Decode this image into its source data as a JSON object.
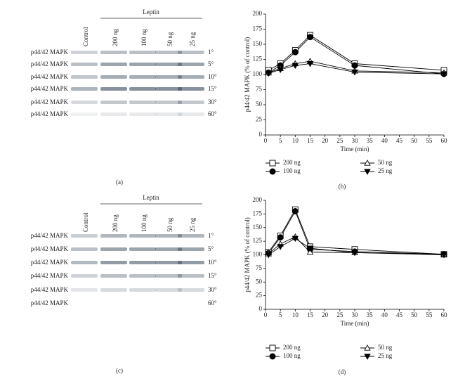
{
  "blots": [
    {
      "header": "Leptin",
      "lanes": [
        "Control",
        "200 ng",
        "100 ng",
        "50 ng",
        "25 ng"
      ],
      "rows": [
        {
          "label": "p44/42 MAPK",
          "time": "1°"
        },
        {
          "label": "p44/42 MAPK",
          "time": "5°"
        },
        {
          "label": "p44/42 MAPK",
          "time": "10°"
        },
        {
          "label": "p44/42 MAPK",
          "time": "15°"
        },
        {
          "label": "p44/42 MAPK",
          "time": "30°"
        },
        {
          "label": "p44/42 MAPK",
          "time": "60°"
        }
      ],
      "caption": "(a)"
    },
    {
      "header": "Leptin",
      "lanes": [
        "Control",
        "200 ng",
        "100 ng",
        "50 ng",
        "25 ng"
      ],
      "rows": [
        {
          "label": "p44/42 MAPK",
          "time": "1°"
        },
        {
          "label": "p44/42 MAPK",
          "time": "5°"
        },
        {
          "label": "p44/42 MAPK",
          "time": "10°"
        },
        {
          "label": "p44/42 MAPK",
          "time": "15°"
        },
        {
          "label": "p44/42 MAPK",
          "time": "30°"
        },
        {
          "label": "p44/42 MAPK",
          "time": "60°"
        }
      ],
      "caption": "(c)"
    }
  ],
  "chart_data": [
    {
      "type": "line",
      "caption": "(b)",
      "x_label": "Time (min)",
      "y_label": "p44/42 MAPK (% of control)",
      "x": [
        1,
        5,
        10,
        15,
        30,
        60
      ],
      "xlim": [
        0,
        60
      ],
      "xticks": [
        0,
        5,
        10,
        15,
        20,
        25,
        30,
        35,
        40,
        45,
        50,
        55,
        60
      ],
      "ylim": [
        0,
        200
      ],
      "yticks": [
        0,
        25,
        50,
        75,
        100,
        125,
        150,
        175,
        200
      ],
      "series": [
        {
          "name": "200 ng",
          "color": "#000000",
          "marker": "square",
          "marker_fill": "#ffffff",
          "values": [
            107,
            118,
            140,
            165,
            118,
            107
          ]
        },
        {
          "name": "100 ng",
          "color": "#000000",
          "marker": "circle",
          "marker_fill": "#000000",
          "values": [
            103,
            115,
            137,
            162,
            115,
            101
          ]
        },
        {
          "name": "50 ng",
          "color": "#000000",
          "marker": "triangle",
          "marker_fill": "#ffffff",
          "values": [
            103,
            110,
            118,
            122,
            106,
            103
          ]
        },
        {
          "name": "25 ng",
          "color": "#000000",
          "marker": "triangle-down",
          "marker_fill": "#000000",
          "values": [
            102,
            108,
            115,
            118,
            104,
            101
          ]
        }
      ]
    },
    {
      "type": "line",
      "caption": "(d)",
      "x_label": "Time (min)",
      "y_label": "p44/42 MAPK (% of control)",
      "x": [
        1,
        5,
        10,
        15,
        30,
        60
      ],
      "xlim": [
        0,
        60
      ],
      "xticks": [
        0,
        5,
        10,
        15,
        20,
        25,
        30,
        35,
        40,
        45,
        50,
        55,
        60
      ],
      "ylim": [
        0,
        200
      ],
      "yticks": [
        0,
        25,
        50,
        75,
        100,
        125,
        150,
        175,
        200
      ],
      "series": [
        {
          "name": "200 ng",
          "color": "#000000",
          "marker": "square",
          "marker_fill": "#ffffff",
          "values": [
            105,
            135,
            183,
            115,
            110,
            101
          ]
        },
        {
          "name": "100 ng",
          "color": "#000000",
          "marker": "circle",
          "marker_fill": "#000000",
          "values": [
            103,
            132,
            180,
            110,
            106,
            101
          ]
        },
        {
          "name": "50 ng",
          "color": "#000000",
          "marker": "triangle",
          "marker_fill": "#ffffff",
          "values": [
            102,
            120,
            133,
            105,
            104,
            101
          ]
        },
        {
          "name": "25 ng",
          "color": "#000000",
          "marker": "triangle-down",
          "marker_fill": "#000000",
          "values": [
            100,
            115,
            130,
            112,
            104,
            100
          ]
        }
      ]
    }
  ]
}
